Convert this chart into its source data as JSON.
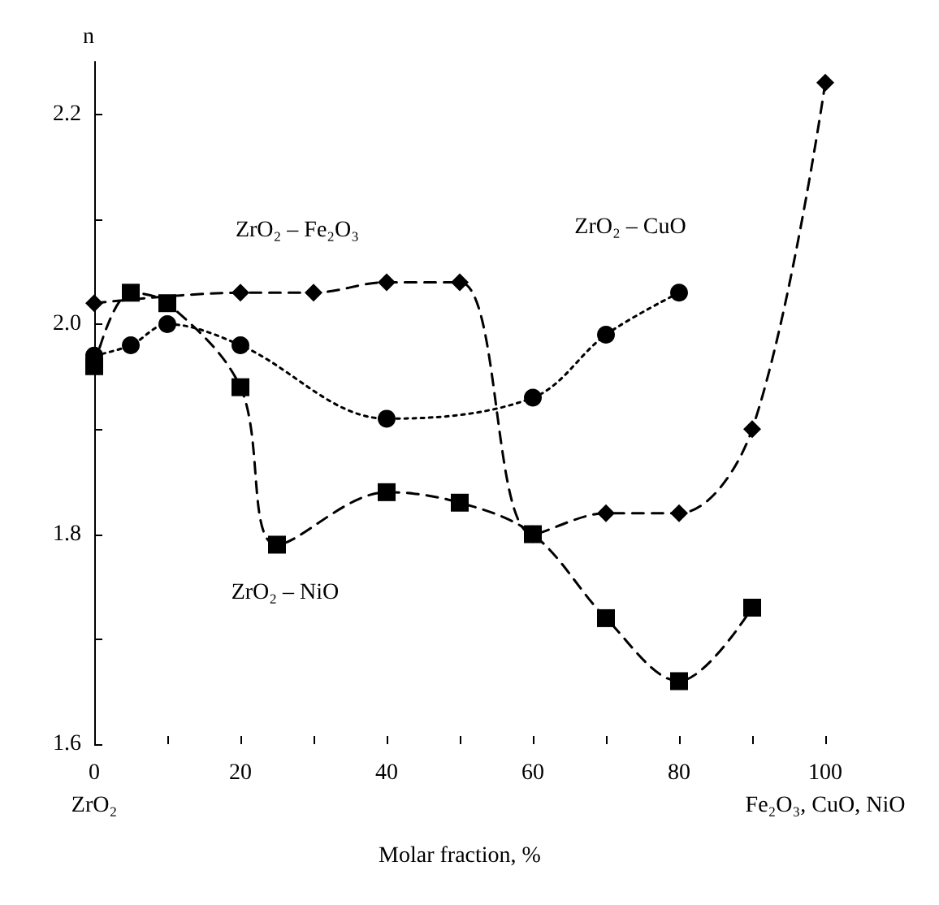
{
  "chart_data": {
    "type": "line",
    "xlabel": "Molar fraction, %",
    "ylabel": "n",
    "xlim": [
      0,
      100
    ],
    "xticks": [
      {
        "value": 0,
        "label": "0\nZrO₂"
      },
      {
        "value": 10,
        "label": null
      },
      20,
      {
        "value": 30,
        "label": null
      },
      40,
      {
        "value": 50,
        "label": null
      },
      60,
      {
        "value": 70,
        "label": null
      },
      80,
      {
        "value": 90,
        "label": null
      },
      {
        "value": 100,
        "label": "100\nFe₂O₃, CuO, NiO"
      }
    ],
    "ylim": [
      1.6,
      2.25
    ],
    "yticks": [
      1.6,
      {
        "value": 1.7,
        "label": null
      },
      1.8,
      {
        "value": 1.9,
        "label": null
      },
      {
        "value": 2.0,
        "label": "2.0"
      },
      {
        "value": 2.1,
        "label": null
      },
      2.2
    ],
    "grid": false,
    "legend": false,
    "series": [
      {
        "name": "ZrO₂ – Fe₂O₃",
        "color": "#000000",
        "marker": "diamond",
        "line_style": "dashed",
        "x": [
          0,
          20,
          30,
          40,
          50,
          60,
          70,
          80,
          90,
          100
        ],
        "values": [
          2.02,
          2.03,
          2.03,
          2.04,
          2.04,
          1.8,
          1.82,
          1.82,
          1.9,
          2.23
        ]
      },
      {
        "name": "ZrO₂ – CuO",
        "color": "#000000",
        "marker": "circle",
        "line_style": "dotted",
        "x": [
          0,
          5,
          10,
          20,
          40,
          60,
          70,
          80
        ],
        "values": [
          1.97,
          1.98,
          2.0,
          1.98,
          1.91,
          1.93,
          1.99,
          2.03
        ]
      },
      {
        "name": "ZrO₂ – NiO",
        "color": "#000000",
        "marker": "square",
        "line_style": "dashed",
        "x": [
          0,
          5,
          10,
          20,
          25,
          40,
          50,
          60,
          70,
          80,
          90
        ],
        "values": [
          1.96,
          2.03,
          2.02,
          1.94,
          1.79,
          1.84,
          1.83,
          1.8,
          1.72,
          1.66,
          1.73
        ]
      }
    ]
  }
}
